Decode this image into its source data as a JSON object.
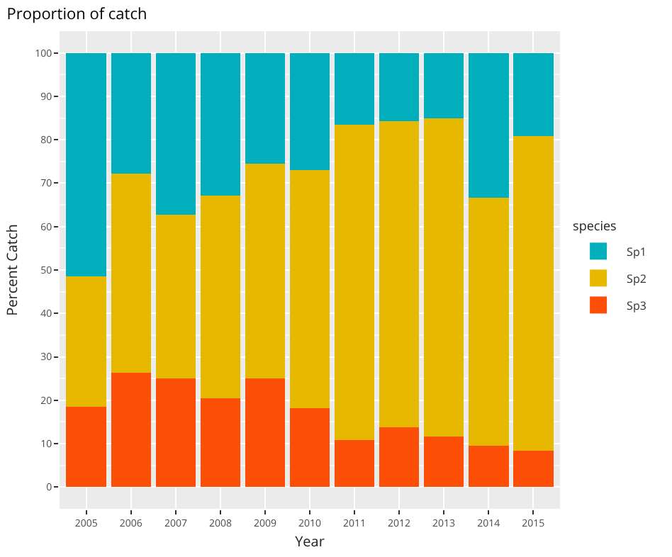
{
  "chart_data": {
    "type": "bar",
    "title": "Proportion of catch",
    "xlabel": "Year",
    "ylabel": "Percent Catch",
    "legend_title": "species",
    "stacked": true,
    "grid": true,
    "legend": "right",
    "categories": [
      "2005",
      "2006",
      "2007",
      "2008",
      "2009",
      "2010",
      "2011",
      "2012",
      "2013",
      "2014",
      "2015"
    ],
    "series": [
      {
        "name": "Sp3",
        "color": "#fc4e07",
        "values": [
          18.5,
          26.3,
          25.0,
          20.5,
          25.1,
          18.2,
          10.8,
          13.8,
          11.7,
          9.5,
          8.4
        ]
      },
      {
        "name": "Sp2",
        "color": "#e7b800",
        "values": [
          30.0,
          45.9,
          37.8,
          46.6,
          49.4,
          54.8,
          72.7,
          70.4,
          73.2,
          57.1,
          72.4
        ]
      },
      {
        "name": "Sp1",
        "color": "#00afbb",
        "values": [
          51.5,
          27.8,
          37.2,
          32.9,
          25.5,
          27.0,
          16.5,
          15.8,
          15.1,
          33.4,
          19.2
        ]
      }
    ],
    "ylim": [
      -5,
      105
    ],
    "yticks": [
      0,
      10,
      20,
      30,
      40,
      50,
      60,
      70,
      80,
      90,
      100
    ]
  }
}
